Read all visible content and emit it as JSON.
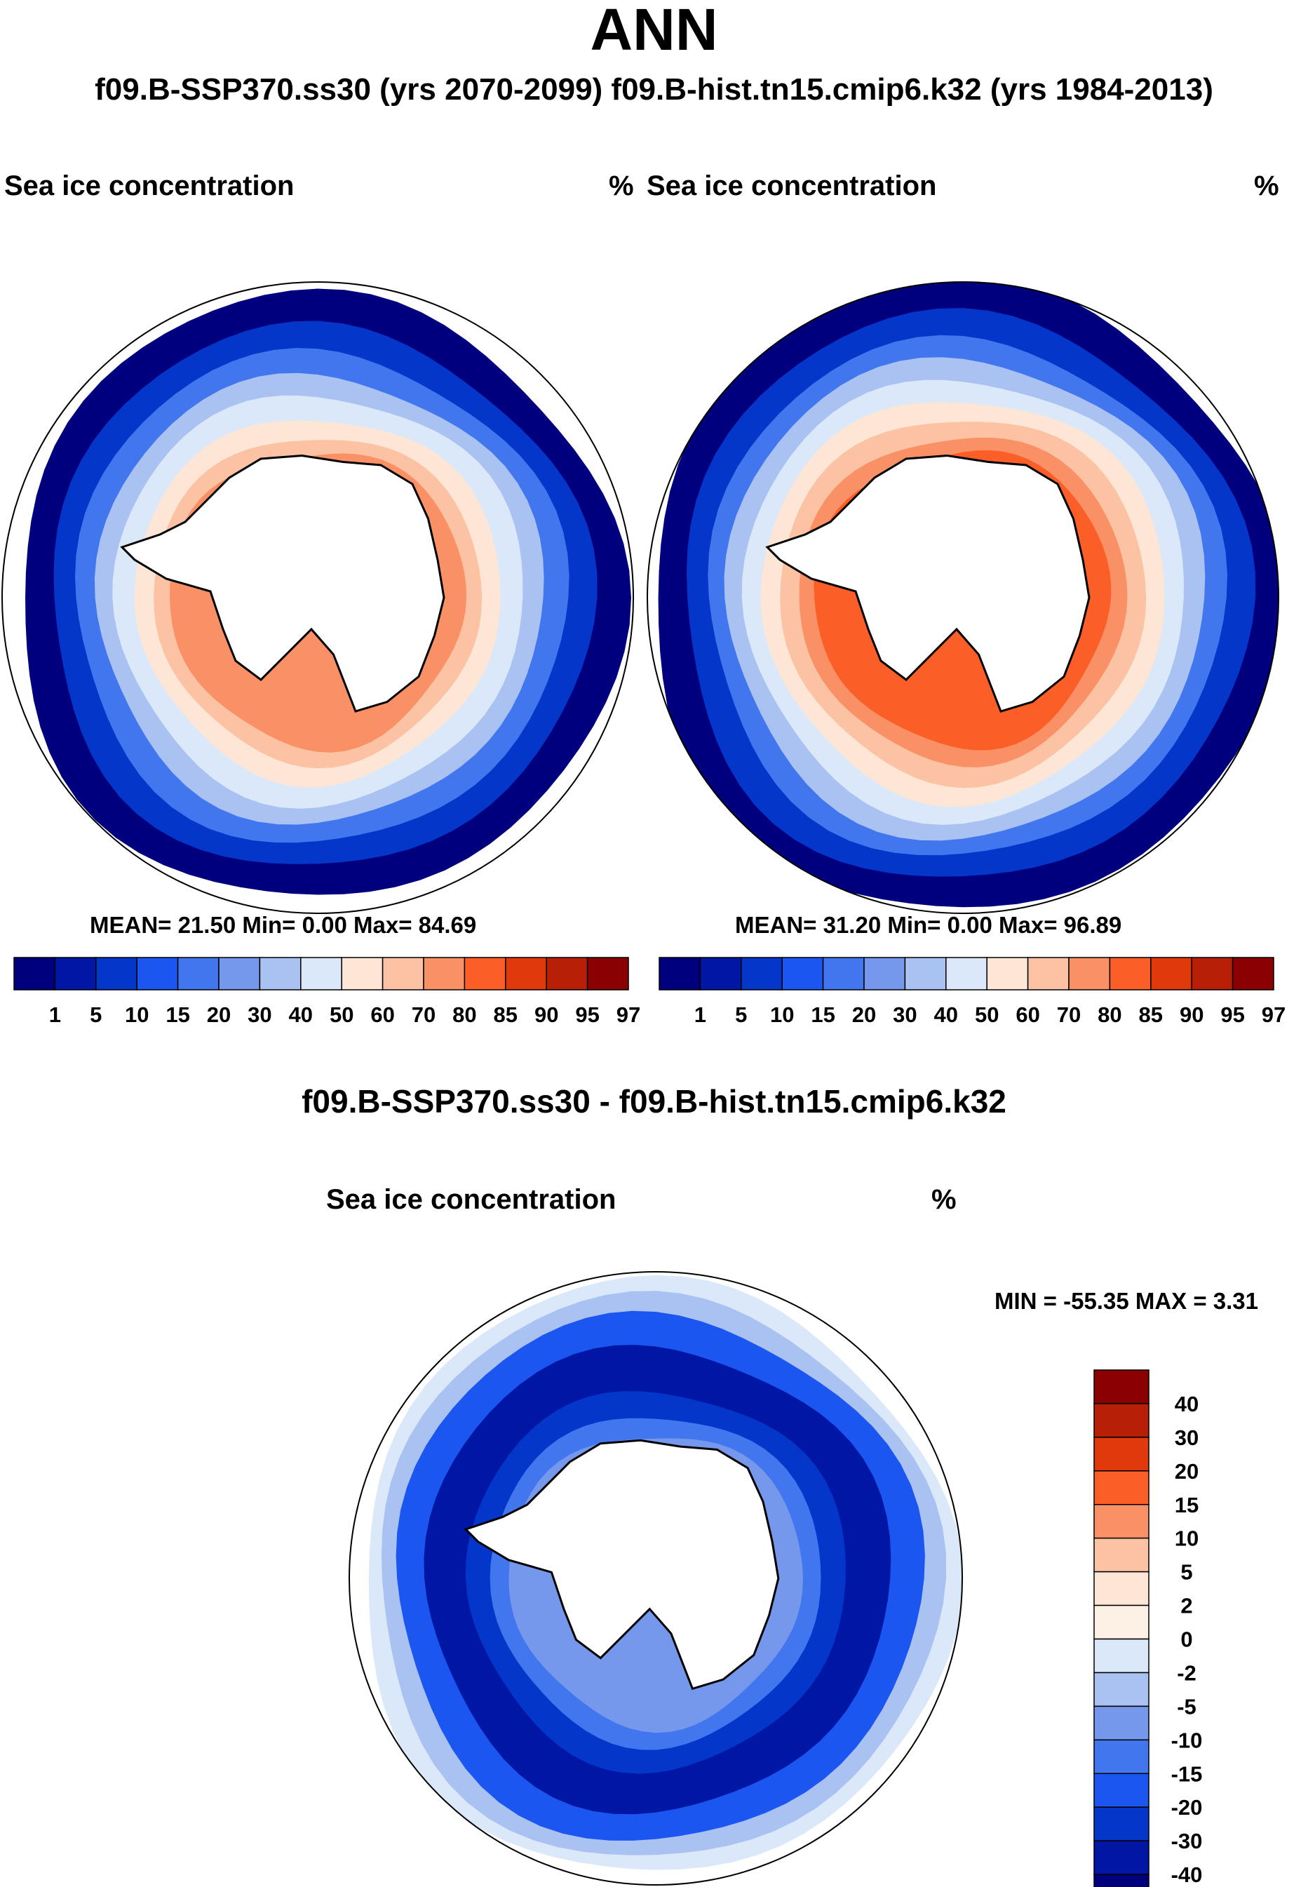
{
  "title": "ANN",
  "subtitle": "f09.B-SSP370.ss30 (yrs 2070-2099)  f09.B-hist.tn15.cmip6.k32 (yrs 1984-2013)",
  "chart_data": [
    {
      "type": "heatmap",
      "name": "f09.B-SSP370.ss30 (yrs 2070-2099)",
      "variable": "Sea ice concentration",
      "units": "%",
      "projection": "south polar stereographic",
      "stats": {
        "mean": 21.5,
        "min": 0.0,
        "max": 84.69
      },
      "stats_text": "MEAN= 21.50  Min=   0.00  Max=  84.69",
      "levels": [
        "1",
        "5",
        "10",
        "15",
        "20",
        "30",
        "40",
        "50",
        "60",
        "70",
        "80",
        "85",
        "90",
        "95",
        "97"
      ],
      "colors": [
        "#00007e",
        "#0016a4",
        "#0336c9",
        "#1c56f1",
        "#4276ee",
        "#7597ec",
        "#a9c2f2",
        "#dae8f9",
        "#fde6d6",
        "#fcc2a4",
        "#fa9166",
        "#fb5f27",
        "#e03a0c",
        "#b71f07",
        "#8b0000"
      ]
    },
    {
      "type": "heatmap",
      "name": "f09.B-hist.tn15.cmip6.k32 (yrs 1984-2013)",
      "variable": "Sea ice concentration",
      "units": "%",
      "projection": "south polar stereographic",
      "stats": {
        "mean": 31.2,
        "min": 0.0,
        "max": 96.89
      },
      "stats_text": "MEAN= 31.20  Min=   0.00  Max=  96.89",
      "levels": [
        "1",
        "5",
        "10",
        "15",
        "20",
        "30",
        "40",
        "50",
        "60",
        "70",
        "80",
        "85",
        "90",
        "95",
        "97"
      ],
      "colors": [
        "#00007e",
        "#0016a4",
        "#0336c9",
        "#1c56f1",
        "#4276ee",
        "#7597ec",
        "#a9c2f2",
        "#dae8f9",
        "#fde6d6",
        "#fcc2a4",
        "#fa9166",
        "#fb5f27",
        "#e03a0c",
        "#b71f07",
        "#8b0000"
      ]
    },
    {
      "type": "heatmap",
      "name": "f09.B-SSP370.ss30 - f09.B-hist.tn15.cmip6.k32",
      "variable": "Sea ice concentration",
      "units": "%",
      "projection": "south polar stereographic",
      "stats": {
        "min": -55.35,
        "max": 3.31
      },
      "stats_text": "MIN = -55.35 MAX =   3.31",
      "levels": [
        "40",
        "30",
        "20",
        "15",
        "10",
        "5",
        "2",
        "0",
        "-2",
        "-5",
        "-10",
        "-15",
        "-20",
        "-30",
        "-40"
      ],
      "colors": [
        "#8b0000",
        "#b71f07",
        "#e03a0c",
        "#fb5f27",
        "#fa9166",
        "#fcc2a4",
        "#fde6d6",
        "#fdf1e6",
        "#dae8f9",
        "#a9c2f2",
        "#7597ec",
        "#4276ee",
        "#1c56f1",
        "#0336c9",
        "#0016a4",
        "#00007e"
      ]
    }
  ],
  "diff_title": "f09.B-SSP370.ss30 - f09.B-hist.tn15.cmip6.k32"
}
